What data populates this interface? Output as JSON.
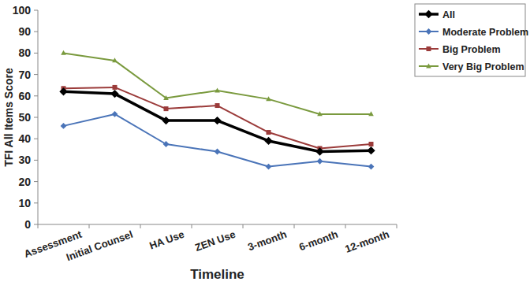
{
  "chart_data": {
    "type": "line",
    "x_label": "Timeline",
    "y_label": "TFI All Items Score",
    "categories": [
      "Assessment",
      "Initial Counsel",
      "HA Use",
      "ZEN Use",
      "3-month",
      "6-month",
      "12-month"
    ],
    "series": [
      {
        "name": "All",
        "color": "#000000",
        "marker": "diamond",
        "values": [
          62,
          61,
          48.5,
          48.5,
          39,
          34,
          34.5
        ]
      },
      {
        "name": "Moderate Problem",
        "color": "#4a74b8",
        "marker": "diamond",
        "values": [
          46,
          51.5,
          37.5,
          34,
          27,
          29.5,
          27
        ]
      },
      {
        "name": "Big Problem",
        "color": "#9b3b3a",
        "marker": "square",
        "values": [
          63.5,
          64,
          54,
          55.5,
          43,
          35.5,
          37.5
        ]
      },
      {
        "name": "Very Big Problem",
        "color": "#7a9a3e",
        "marker": "triangle",
        "values": [
          80,
          76.5,
          59,
          62.5,
          58.5,
          51.5,
          51.5
        ]
      }
    ],
    "ylim": [
      0,
      100
    ],
    "yticks": [
      0,
      10,
      20,
      30,
      40,
      50,
      60,
      70,
      80,
      90,
      100
    ],
    "grid": false,
    "legend": "right"
  }
}
